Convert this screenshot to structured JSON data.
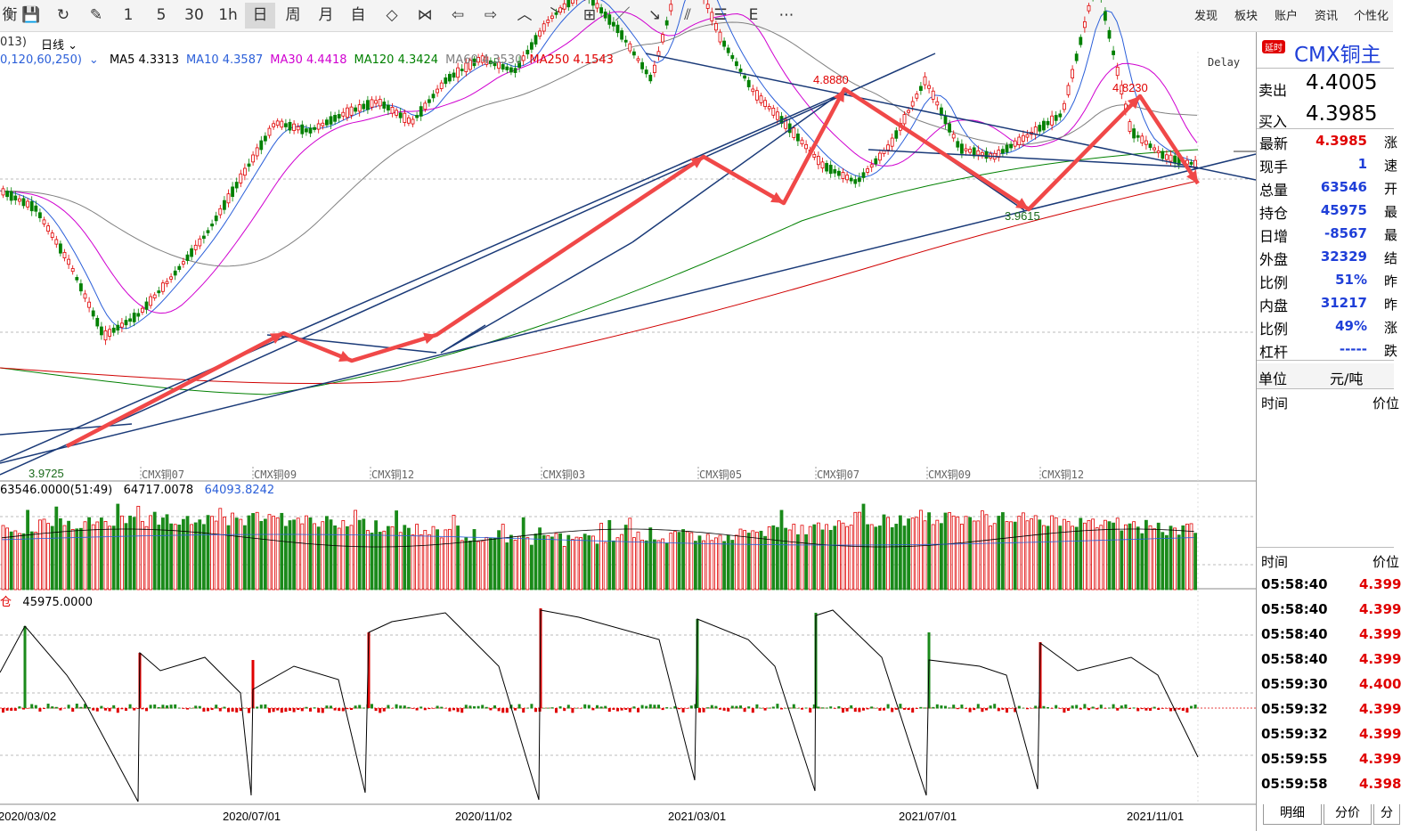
{
  "toolbar": {
    "buttons": [
      {
        "name": "partial-icon",
        "glyph": "衡"
      },
      {
        "name": "save-icon",
        "glyph": "💾"
      },
      {
        "name": "refresh-icon",
        "glyph": "↻"
      },
      {
        "name": "draw-tool-icon",
        "glyph": "✎"
      },
      {
        "name": "period-1",
        "glyph": "1"
      },
      {
        "name": "period-5",
        "glyph": "5"
      },
      {
        "name": "period-30",
        "glyph": "30"
      },
      {
        "name": "period-1h",
        "glyph": "1h"
      },
      {
        "name": "period-day",
        "glyph": "日"
      },
      {
        "name": "period-week",
        "glyph": "周"
      },
      {
        "name": "period-month",
        "glyph": "月"
      },
      {
        "name": "period-custom",
        "glyph": "自"
      },
      {
        "name": "zoom-in-icon",
        "glyph": "◇"
      },
      {
        "name": "zoom-out-icon",
        "glyph": "⋈"
      },
      {
        "name": "arrow-left-icon",
        "glyph": "⇦"
      },
      {
        "name": "arrow-right-icon",
        "glyph": "⇨"
      },
      {
        "name": "arrow-up-icon",
        "glyph": "︿"
      },
      {
        "name": "arrow-down-icon",
        "glyph": "﹀"
      },
      {
        "name": "layout-icon",
        "glyph": "⊞"
      },
      {
        "name": "line-tool-icon",
        "glyph": "／"
      },
      {
        "name": "ray-tool-icon",
        "glyph": "↘"
      },
      {
        "name": "parallel-tool-icon",
        "glyph": "⫽"
      },
      {
        "name": "fibonacci-icon",
        "glyph": "☰"
      },
      {
        "name": "text-tool-icon",
        "glyph": "E"
      },
      {
        "name": "more-icon",
        "glyph": "⋯"
      }
    ],
    "menus": [
      "发现",
      "板块",
      "账户",
      "资讯",
      "个性化"
    ]
  },
  "subbar": {
    "code": "013)",
    "period": "日线"
  },
  "ma": {
    "params": "0,120,60,250)",
    "items": [
      {
        "label": "MA5 4.3313",
        "color": "#000000"
      },
      {
        "label": "MA10 4.3587",
        "color": "#2b5fd9"
      },
      {
        "label": "MA30 4.4418",
        "color": "#d000d0"
      },
      {
        "label": "MA120 4.3424",
        "color": "#008000"
      },
      {
        "label": "MA60 4.3530",
        "color": "#808080"
      },
      {
        "label": "MA250 4.1543",
        "color": "#e00000"
      }
    ],
    "delay": "Delay"
  },
  "chart_data": {
    "type": "candlestick",
    "instrument": "CMX铜主",
    "annotations": [
      {
        "label": "4.8880",
        "type": "high"
      },
      {
        "label": "4.8230",
        "type": "high"
      },
      {
        "label": "3.9615",
        "type": "low"
      },
      {
        "label": "3.9725",
        "type": "low"
      }
    ],
    "contract_labels": [
      "CMX铜07",
      "CMX铜09",
      "CMX铜12",
      "CMX铜03",
      "CMX铜05",
      "CMX铜07",
      "CMX铜09",
      "CMX铜12"
    ],
    "volume_header": {
      "v1": "63546.0000(51:49)",
      "v2": "64717.0078",
      "v3": "64093.8242"
    },
    "oi_header": {
      "label": "仓",
      "value": "45975.0000"
    },
    "x_dates": [
      "2020/03/02",
      "2020/07/01",
      "2020/11/02",
      "2021/03/01",
      "2021/07/01",
      "2021/11/01"
    ],
    "close_path": [
      4.32,
      4.28,
      4.15,
      3.98,
      4.03,
      4.12,
      4.22,
      4.35,
      4.48,
      4.46,
      4.5,
      4.53,
      4.48,
      4.58,
      4.63,
      4.6,
      4.72,
      4.79,
      4.7,
      4.58,
      4.88,
      4.68,
      4.55,
      4.47,
      4.38,
      4.34,
      4.43,
      4.58,
      4.42,
      4.4,
      4.45,
      4.5,
      4.82,
      4.46,
      4.4,
      4.38
    ]
  },
  "quote": {
    "badge": "延时",
    "title": "CMX铜主",
    "sell_label": "卖出",
    "sell_value": "4.4005",
    "buy_label": "买入",
    "buy_value": "4.3985",
    "rows": [
      {
        "label": "最新",
        "value": "4.3985",
        "cls": "red",
        "cut": "涨"
      },
      {
        "label": "现手",
        "value": "1",
        "cls": "blue",
        "cut": "速"
      },
      {
        "label": "总量",
        "value": "63546",
        "cls": "blue",
        "cut": "开"
      },
      {
        "label": "持仓",
        "value": "45975",
        "cls": "blue",
        "cut": "最"
      },
      {
        "label": "日增",
        "value": "-8567",
        "cls": "blue",
        "cut": "最"
      },
      {
        "label": "外盘",
        "value": "32329",
        "cls": "blue",
        "cut": "结"
      },
      {
        "label": "比例",
        "value": "51%",
        "cls": "blue",
        "cut": "昨"
      },
      {
        "label": "内盘",
        "value": "31217",
        "cls": "blue",
        "cut": "昨"
      },
      {
        "label": "比例",
        "value": "49%",
        "cls": "blue",
        "cut": "涨"
      },
      {
        "label": "杠杆",
        "value": "-----",
        "cls": "blue",
        "cut": "跌"
      }
    ],
    "unit_label": "单位",
    "unit_value": "元/吨",
    "time_header": "时间",
    "price_header": "价位",
    "ticks_header_time": "时间",
    "ticks_header_price": "价位",
    "ticks": [
      {
        "time": "05:58:40",
        "price": "4.399"
      },
      {
        "time": "05:58:40",
        "price": "4.399"
      },
      {
        "time": "05:58:40",
        "price": "4.399"
      },
      {
        "time": "05:58:40",
        "price": "4.399"
      },
      {
        "time": "05:59:30",
        "price": "4.400"
      },
      {
        "time": "05:59:32",
        "price": "4.399"
      },
      {
        "time": "05:59:32",
        "price": "4.399"
      },
      {
        "time": "05:59:55",
        "price": "4.399"
      },
      {
        "time": "05:59:58",
        "price": "4.398"
      }
    ],
    "tabs": [
      "明细",
      "分价",
      "分"
    ]
  }
}
